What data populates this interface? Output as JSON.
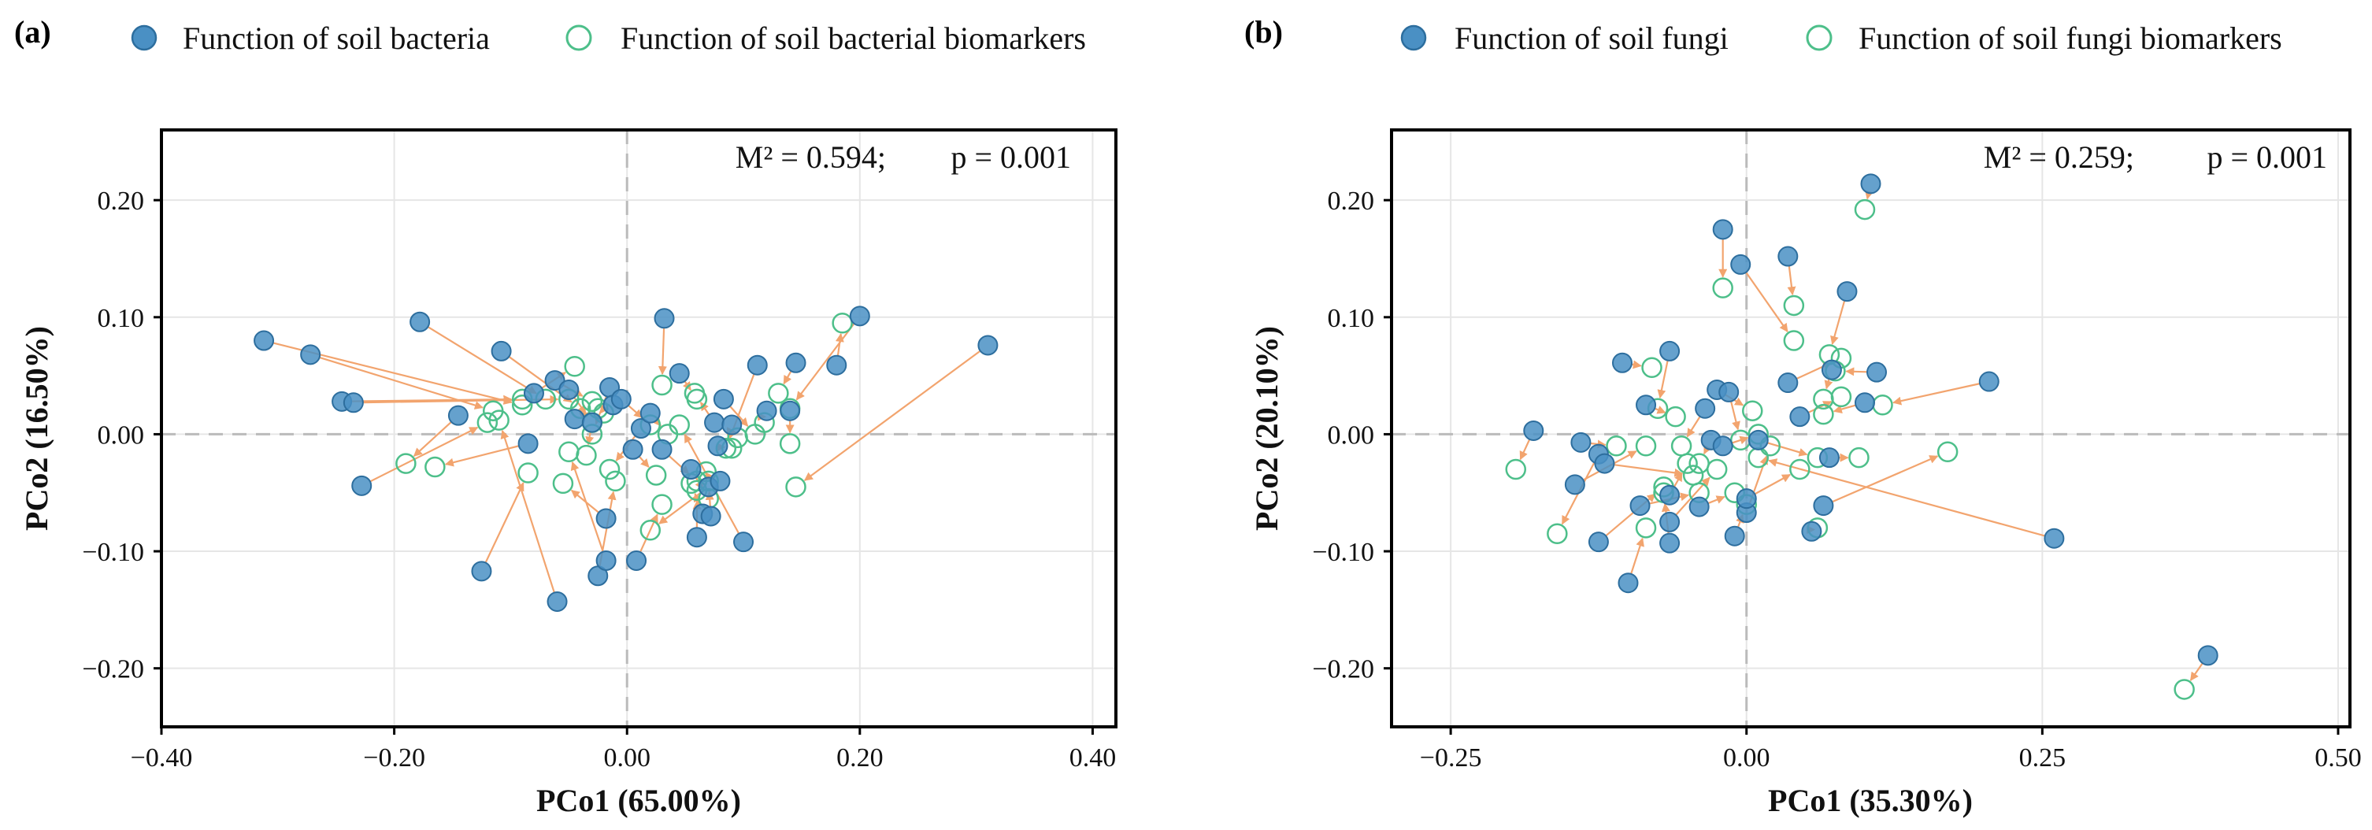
{
  "colors": {
    "sample_fill": "#4a90c4",
    "sample_stroke": "#2d6e9e",
    "biomarker_stroke": "#4dbf8a",
    "arrow": "#f2a46e",
    "zero_line": "#bbbbbb",
    "grid": "#e6e6e6",
    "axis": "#000000"
  },
  "chart_data": [
    {
      "type": "scatter",
      "panel_label": "(a)",
      "legend": {
        "sample": "Function of soil bacteria",
        "biomarker": "Function of soil bacterial biomarkers",
        "placement": "top"
      },
      "annotation": {
        "m2": "M² = 0.594;",
        "p": "p = 0.001",
        "placement": "top-right"
      },
      "xlabel": "PCo1 (65.00%)",
      "ylabel": "PCo2 (16.50%)",
      "xlim": [
        -0.4,
        0.42
      ],
      "ylim": [
        -0.25,
        0.26
      ],
      "xticks": [
        -0.4,
        -0.2,
        0.0,
        0.2,
        0.4
      ],
      "xtick_labels": [
        "−0.40",
        "−0.20",
        "0.00",
        "0.20",
        "0.40"
      ],
      "yticks": [
        -0.2,
        -0.1,
        0.0,
        0.1,
        0.2
      ],
      "ytick_labels": [
        "−0.20",
        "−0.10",
        "0.00",
        "0.10",
        "0.20"
      ],
      "grid": true,
      "pairs": [
        {
          "x": -0.312,
          "y": 0.08,
          "bx": -0.09,
          "by": 0.025
        },
        {
          "x": -0.272,
          "y": 0.068,
          "bx": -0.115,
          "by": 0.02
        },
        {
          "x": -0.245,
          "y": 0.028,
          "bx": -0.09,
          "by": 0.03
        },
        {
          "x": -0.235,
          "y": 0.027,
          "bx": -0.05,
          "by": 0.03
        },
        {
          "x": -0.228,
          "y": -0.044,
          "bx": -0.12,
          "by": 0.01
        },
        {
          "x": -0.178,
          "y": 0.096,
          "bx": -0.07,
          "by": 0.03
        },
        {
          "x": -0.145,
          "y": 0.016,
          "bx": -0.19,
          "by": -0.025
        },
        {
          "x": -0.108,
          "y": 0.071,
          "bx": -0.04,
          "by": 0.022
        },
        {
          "x": -0.125,
          "y": -0.117,
          "bx": -0.085,
          "by": -0.033
        },
        {
          "x": -0.06,
          "y": -0.143,
          "bx": -0.11,
          "by": 0.012
        },
        {
          "x": -0.085,
          "y": -0.008,
          "bx": -0.165,
          "by": -0.028
        },
        {
          "x": -0.08,
          "y": 0.035,
          "bx": -0.045,
          "by": 0.058
        },
        {
          "x": -0.062,
          "y": 0.046,
          "bx": -0.03,
          "by": 0.028
        },
        {
          "x": -0.05,
          "y": 0.038,
          "bx": -0.03,
          "by": 0.01
        },
        {
          "x": -0.045,
          "y": 0.013,
          "bx": -0.025,
          "by": 0.022
        },
        {
          "x": -0.03,
          "y": 0.01,
          "bx": -0.035,
          "by": -0.018
        },
        {
          "x": -0.025,
          "y": -0.121,
          "bx": -0.01,
          "by": -0.04
        },
        {
          "x": -0.018,
          "y": -0.108,
          "bx": -0.05,
          "by": -0.015
        },
        {
          "x": -0.015,
          "y": 0.04,
          "bx": -0.03,
          "by": 0.0
        },
        {
          "x": -0.012,
          "y": 0.025,
          "bx": -0.02,
          "by": 0.018
        },
        {
          "x": -0.018,
          "y": -0.072,
          "bx": -0.055,
          "by": -0.042
        },
        {
          "x": -0.005,
          "y": 0.03,
          "bx": 0.02,
          "by": 0.008
        },
        {
          "x": 0.005,
          "y": -0.013,
          "bx": 0.025,
          "by": -0.035
        },
        {
          "x": 0.008,
          "y": -0.108,
          "bx": 0.03,
          "by": -0.06
        },
        {
          "x": 0.012,
          "y": 0.005,
          "bx": -0.015,
          "by": -0.03
        },
        {
          "x": 0.02,
          "y": 0.018,
          "bx": 0.035,
          "by": 0.0
        },
        {
          "x": 0.032,
          "y": 0.099,
          "bx": 0.03,
          "by": 0.042
        },
        {
          "x": 0.03,
          "y": -0.013,
          "bx": 0.06,
          "by": -0.04
        },
        {
          "x": 0.045,
          "y": 0.052,
          "bx": 0.06,
          "by": 0.03
        },
        {
          "x": 0.055,
          "y": -0.03,
          "bx": 0.07,
          "by": -0.055
        },
        {
          "x": 0.06,
          "y": -0.088,
          "bx": 0.06,
          "by": -0.048
        },
        {
          "x": 0.065,
          "y": -0.068,
          "bx": 0.055,
          "by": -0.042
        },
        {
          "x": 0.07,
          "y": -0.045,
          "bx": 0.02,
          "by": -0.082
        },
        {
          "x": 0.072,
          "y": -0.07,
          "bx": 0.07,
          "by": -0.04
        },
        {
          "x": 0.075,
          "y": 0.01,
          "bx": 0.058,
          "by": 0.035
        },
        {
          "x": 0.078,
          "y": -0.01,
          "bx": 0.09,
          "by": -0.012
        },
        {
          "x": 0.08,
          "y": -0.04,
          "bx": 0.068,
          "by": -0.032
        },
        {
          "x": 0.083,
          "y": 0.03,
          "bx": 0.11,
          "by": 0.0
        },
        {
          "x": 0.09,
          "y": 0.008,
          "bx": 0.095,
          "by": -0.003
        },
        {
          "x": 0.1,
          "y": -0.092,
          "bx": 0.045,
          "by": 0.008
        },
        {
          "x": 0.112,
          "y": 0.059,
          "bx": 0.085,
          "by": -0.012
        },
        {
          "x": 0.12,
          "y": 0.02,
          "bx": 0.118,
          "by": 0.01
        },
        {
          "x": 0.14,
          "y": 0.02,
          "bx": 0.14,
          "by": -0.008
        },
        {
          "x": 0.145,
          "y": 0.061,
          "bx": 0.13,
          "by": 0.035
        },
        {
          "x": 0.18,
          "y": 0.059,
          "bx": 0.185,
          "by": 0.095
        },
        {
          "x": 0.2,
          "y": 0.101,
          "bx": 0.14,
          "by": 0.022
        },
        {
          "x": 0.31,
          "y": 0.076,
          "bx": 0.145,
          "by": -0.045
        }
      ]
    },
    {
      "type": "scatter",
      "panel_label": "(b)",
      "legend": {
        "sample": "Function of soil fungi",
        "biomarker": "Function of soil fungi biomarkers",
        "placement": "top"
      },
      "annotation": {
        "m2": "M² = 0.259;",
        "p": "p = 0.001",
        "placement": "top-right"
      },
      "xlabel": "PCo1 (35.30%)",
      "ylabel": "PCo2 (20.10%)",
      "xlim": [
        -0.3,
        0.51
      ],
      "ylim": [
        -0.25,
        0.26
      ],
      "xticks": [
        -0.25,
        0.0,
        0.25,
        0.5
      ],
      "xtick_labels": [
        "−0.25",
        "0.00",
        "0.25",
        "0.50"
      ],
      "yticks": [
        -0.2,
        -0.1,
        0.0,
        0.1,
        0.2
      ],
      "ytick_labels": [
        "−0.20",
        "−0.10",
        "0.00",
        "0.10",
        "0.20"
      ],
      "grid": true,
      "pairs": [
        {
          "x": 0.105,
          "y": 0.214,
          "bx": 0.1,
          "by": 0.192
        },
        {
          "x": -0.02,
          "y": 0.175,
          "bx": -0.02,
          "by": 0.125
        },
        {
          "x": 0.035,
          "y": 0.152,
          "bx": 0.04,
          "by": 0.11
        },
        {
          "x": -0.005,
          "y": 0.145,
          "bx": 0.04,
          "by": 0.08
        },
        {
          "x": 0.085,
          "y": 0.122,
          "bx": 0.07,
          "by": 0.068
        },
        {
          "x": -0.105,
          "y": 0.061,
          "bx": -0.08,
          "by": 0.057
        },
        {
          "x": -0.065,
          "y": 0.071,
          "bx": -0.075,
          "by": 0.022
        },
        {
          "x": 0.035,
          "y": 0.044,
          "bx": 0.08,
          "by": 0.065
        },
        {
          "x": 0.11,
          "y": 0.053,
          "bx": 0.075,
          "by": 0.054
        },
        {
          "x": 0.205,
          "y": 0.045,
          "bx": 0.115,
          "by": 0.025
        },
        {
          "x": 0.1,
          "y": 0.027,
          "bx": 0.065,
          "by": 0.017
        },
        {
          "x": 0.072,
          "y": 0.055,
          "bx": 0.065,
          "by": 0.03
        },
        {
          "x": -0.085,
          "y": 0.025,
          "bx": -0.06,
          "by": 0.015
        },
        {
          "x": -0.025,
          "y": 0.038,
          "bx": 0.005,
          "by": 0.02
        },
        {
          "x": -0.015,
          "y": 0.036,
          "bx": -0.005,
          "by": -0.005
        },
        {
          "x": -0.18,
          "y": 0.003,
          "bx": -0.195,
          "by": -0.03
        },
        {
          "x": -0.14,
          "y": -0.007,
          "bx": -0.11,
          "by": -0.01
        },
        {
          "x": -0.125,
          "y": -0.017,
          "bx": -0.16,
          "by": -0.085
        },
        {
          "x": -0.145,
          "y": -0.043,
          "bx": -0.085,
          "by": -0.01
        },
        {
          "x": -0.12,
          "y": -0.025,
          "bx": -0.045,
          "by": -0.035
        },
        {
          "x": -0.125,
          "y": -0.092,
          "bx": -0.07,
          "by": -0.045
        },
        {
          "x": -0.1,
          "y": -0.127,
          "bx": -0.085,
          "by": -0.08
        },
        {
          "x": -0.09,
          "y": -0.061,
          "bx": -0.04,
          "by": -0.05
        },
        {
          "x": -0.065,
          "y": -0.093,
          "bx": -0.07,
          "by": -0.05
        },
        {
          "x": -0.065,
          "y": -0.052,
          "bx": -0.05,
          "by": -0.025
        },
        {
          "x": -0.065,
          "y": -0.075,
          "bx": -0.025,
          "by": -0.03
        },
        {
          "x": -0.04,
          "y": -0.062,
          "bx": -0.01,
          "by": -0.05
        },
        {
          "x": -0.035,
          "y": 0.022,
          "bx": -0.055,
          "by": -0.01
        },
        {
          "x": -0.03,
          "y": -0.005,
          "bx": -0.04,
          "by": -0.025
        },
        {
          "x": -0.02,
          "y": -0.01,
          "bx": 0.01,
          "by": 0.0
        },
        {
          "x": -0.01,
          "y": -0.087,
          "bx": 0.0,
          "by": -0.06
        },
        {
          "x": 0.0,
          "y": -0.067,
          "bx": 0.02,
          "by": -0.01
        },
        {
          "x": 0.0,
          "y": -0.055,
          "bx": 0.045,
          "by": -0.03
        },
        {
          "x": 0.01,
          "y": -0.005,
          "bx": 0.06,
          "by": -0.02
        },
        {
          "x": 0.045,
          "y": 0.015,
          "bx": 0.08,
          "by": 0.032
        },
        {
          "x": 0.055,
          "y": -0.083,
          "bx": 0.06,
          "by": -0.08
        },
        {
          "x": 0.065,
          "y": -0.061,
          "bx": 0.17,
          "by": -0.015
        },
        {
          "x": 0.07,
          "y": -0.02,
          "bx": 0.095,
          "by": -0.02
        },
        {
          "x": 0.26,
          "y": -0.089,
          "bx": 0.01,
          "by": -0.02
        },
        {
          "x": 0.39,
          "y": -0.189,
          "bx": 0.37,
          "by": -0.218
        }
      ]
    }
  ]
}
